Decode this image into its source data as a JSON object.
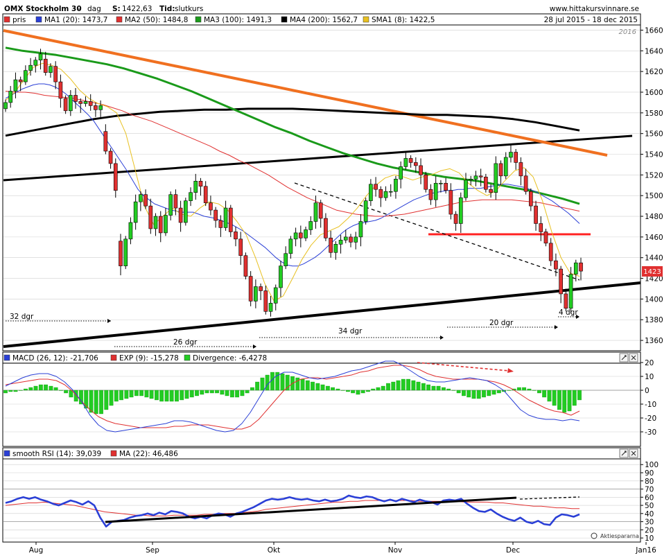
{
  "header": {
    "title": "OMX Stockholm 30",
    "sep": "-",
    "period": "dag",
    "last_label": "S:",
    "last_value": "1422,63",
    "type_label": "Tid:",
    "type_value": "slutkurs",
    "site": "www.hittakursvinnare.se",
    "date_range": "28 jul 2015 - 18 dec 2015",
    "year_mark": "2016"
  },
  "legend_price": [
    {
      "label": "pris",
      "color": "#e03030"
    },
    {
      "label": "MA1 (20): 1473,7",
      "color": "#2a3fd6"
    },
    {
      "label": "MA2 (50): 1484,8",
      "color": "#e03030"
    },
    {
      "label": "MA3 (100): 1491,3",
      "color": "#1a9a1a"
    },
    {
      "label": "MA4 (200): 1562,7",
      "color": "#000000"
    },
    {
      "label": "SMA1 (8): 1422,5",
      "color": "#e8c020"
    }
  ],
  "legend_macd": [
    {
      "label": "MACD (26, 12): -21,706",
      "color": "#2a3fd6"
    },
    {
      "label": "EXP (9): -15,278",
      "color": "#e03030"
    },
    {
      "label": "Divergence: -6,4278",
      "color": "#22cc22"
    }
  ],
  "legend_rsi": [
    {
      "label": "smooth RSI (14): 39,039",
      "color": "#2a3fd6"
    },
    {
      "label": "MA (22): 46,486",
      "color": "#e03030"
    }
  ],
  "annotations": {
    "d32": "32 dgr",
    "d26": "26 dgr",
    "d34": "34 dgr",
    "d20": "20 dgr",
    "d4": "4 dgr"
  },
  "price_badge": "1423",
  "source": "Aktiespararna",
  "colors": {
    "up": "#22cc22",
    "down": "#e03030",
    "trend": "#000000",
    "resistance": "#f07020",
    "support_line": "#ff2020"
  },
  "chart_data": {
    "type": "candlestick",
    "x_labels": [
      "Aug",
      "Sep",
      "Okt",
      "Nov",
      "Dec",
      "Jan16"
    ],
    "price_axis": {
      "ylim": [
        1350,
        1665
      ],
      "ticks": [
        1360,
        1380,
        1400,
        1420,
        1440,
        1460,
        1480,
        1500,
        1520,
        1540,
        1560,
        1580,
        1600,
        1620,
        1640,
        1660
      ]
    },
    "macd_axis": {
      "ylim": [
        -38,
        25
      ],
      "ticks": [
        -30,
        -20,
        -10,
        0,
        10,
        20
      ]
    },
    "rsi_axis": {
      "ylim": [
        5,
        107
      ],
      "ticks": [
        10,
        20,
        30,
        40,
        50,
        60,
        70,
        80,
        90,
        100
      ]
    },
    "close": [
      1590,
      1601,
      1612,
      1610,
      1621,
      1626,
      1631,
      1637,
      1619,
      1625,
      1610,
      1594,
      1582,
      1597,
      1591,
      1589,
      1591,
      1587,
      1583,
      1587,
      1543,
      1531,
      1505,
      1432,
      1458,
      1474,
      1494,
      1501,
      1490,
      1468,
      1480,
      1464,
      1481,
      1501,
      1488,
      1474,
      1495,
      1503,
      1514,
      1509,
      1493,
      1486,
      1476,
      1469,
      1488,
      1465,
      1458,
      1442,
      1422,
      1398,
      1412,
      1408,
      1388,
      1396,
      1411,
      1432,
      1444,
      1458,
      1464,
      1459,
      1467,
      1475,
      1493,
      1478,
      1459,
      1445,
      1453,
      1457,
      1460,
      1455,
      1460,
      1475,
      1495,
      1511,
      1506,
      1498,
      1504,
      1504,
      1516,
      1528,
      1536,
      1532,
      1529,
      1520,
      1506,
      1496,
      1512,
      1512,
      1505,
      1482,
      1473,
      1498,
      1515,
      1516,
      1519,
      1518,
      1506,
      1503,
      1531,
      1519,
      1537,
      1542,
      1532,
      1519,
      1504,
      1490,
      1473,
      1465,
      1454,
      1437,
      1429,
      1405,
      1391,
      1424,
      1435,
      1427
    ],
    "open": [
      1584,
      1590,
      1601,
      1612,
      1610,
      1621,
      1626,
      1631,
      1632,
      1619,
      1625,
      1610,
      1594,
      1582,
      1597,
      1591,
      1589,
      1591,
      1587,
      1583,
      1562,
      1543,
      1531,
      1456,
      1432,
      1458,
      1474,
      1494,
      1501,
      1490,
      1468,
      1480,
      1464,
      1481,
      1501,
      1488,
      1474,
      1495,
      1503,
      1514,
      1509,
      1493,
      1486,
      1476,
      1469,
      1488,
      1465,
      1458,
      1442,
      1422,
      1398,
      1412,
      1408,
      1388,
      1396,
      1411,
      1432,
      1444,
      1458,
      1464,
      1459,
      1467,
      1475,
      1493,
      1478,
      1459,
      1445,
      1453,
      1457,
      1460,
      1455,
      1460,
      1475,
      1495,
      1511,
      1506,
      1498,
      1504,
      1504,
      1516,
      1528,
      1536,
      1532,
      1529,
      1520,
      1506,
      1496,
      1512,
      1512,
      1505,
      1482,
      1473,
      1498,
      1515,
      1516,
      1519,
      1518,
      1506,
      1503,
      1531,
      1519,
      1537,
      1542,
      1532,
      1519,
      1504,
      1490,
      1473,
      1465,
      1454,
      1437,
      1429,
      1405,
      1391,
      1424,
      1435
    ],
    "ma20": [
      1594,
      1597,
      1600,
      1603,
      1605,
      1607,
      1608,
      1608,
      1607,
      1605,
      1602,
      1598,
      1593,
      1588,
      1583,
      1578,
      1572,
      1564,
      1556,
      1548,
      1540,
      1532,
      1524,
      1515,
      1506,
      1500,
      1496,
      1492,
      1490,
      1488,
      1486,
      1485,
      1484,
      1484,
      1484,
      1482,
      1480,
      1479,
      1478,
      1476,
      1474,
      1472,
      1469,
      1466,
      1462,
      1458,
      1454,
      1450,
      1445,
      1440,
      1436,
      1433,
      1432,
      1432,
      1434,
      1437,
      1440,
      1444,
      1449,
      1454,
      1459,
      1464,
      1468,
      1471,
      1473,
      1474,
      1475,
      1476,
      1478,
      1481,
      1484,
      1487,
      1490,
      1493,
      1496,
      1498,
      1500,
      1502,
      1503,
      1504,
      1505,
      1505,
      1506,
      1506,
      1507,
      1507,
      1507,
      1508,
      1509,
      1510,
      1511,
      1511,
      1510,
      1509,
      1508,
      1506,
      1504,
      1501,
      1498,
      1495,
      1491,
      1487,
      1483,
      1478,
      1473
    ],
    "ma50": [
      1601,
      1600,
      1600,
      1599,
      1597,
      1596,
      1595,
      1594,
      1592,
      1590,
      1588,
      1585,
      1582,
      1578,
      1575,
      1572,
      1568,
      1564,
      1560,
      1556,
      1552,
      1548,
      1543,
      1539,
      1534,
      1530,
      1525,
      1520,
      1514,
      1508,
      1503,
      1498,
      1494,
      1490,
      1486,
      1484,
      1482,
      1481,
      1480,
      1480,
      1481,
      1482,
      1484,
      1486,
      1488,
      1490,
      1492,
      1494,
      1495,
      1496,
      1496,
      1496,
      1496,
      1495,
      1494,
      1493,
      1491,
      1489,
      1487,
      1485
    ],
    "ma100": [
      1643,
      1640,
      1638,
      1636,
      1633,
      1630,
      1627,
      1623,
      1618,
      1613,
      1607,
      1601,
      1594,
      1587,
      1580,
      1573,
      1566,
      1560,
      1553,
      1547,
      1541,
      1536,
      1531,
      1527,
      1524,
      1521,
      1518,
      1516,
      1514,
      1511,
      1508,
      1505,
      1501,
      1497,
      1492
    ],
    "ma200": [
      1558,
      1562,
      1566,
      1570,
      1574,
      1577,
      1579,
      1581,
      1582,
      1583,
      1583,
      1584,
      1584,
      1584,
      1583,
      1582,
      1581,
      1580,
      1579,
      1578,
      1578,
      1577,
      1576,
      1574,
      1571,
      1567,
      1563
    ],
    "sma8": [
      1592,
      1600,
      1612,
      1624,
      1628,
      1626,
      1622,
      1613,
      1602,
      1594,
      1589,
      1586,
      1580,
      1560,
      1525,
      1490,
      1472,
      1480,
      1488,
      1482,
      1480,
      1488,
      1494,
      1492,
      1486,
      1475,
      1462,
      1440,
      1415,
      1398,
      1403,
      1420,
      1438,
      1452,
      1462,
      1466,
      1470,
      1478,
      1488,
      1500,
      1510,
      1517,
      1520,
      1518,
      1515,
      1518,
      1520,
      1524,
      1526,
      1522,
      1512,
      1505,
      1500,
      1505,
      1515,
      1524,
      1527,
      1518,
      1495,
      1465,
      1440,
      1425,
      1422
    ],
    "macd": [
      3,
      6,
      9,
      11,
      12,
      12,
      10,
      6,
      0,
      -8,
      -18,
      -25,
      -29,
      -30,
      -29,
      -28,
      -27,
      -26,
      -25,
      -24,
      -22,
      -22,
      -23,
      -25,
      -27,
      -29,
      -30,
      -29,
      -24,
      -16,
      -6,
      4,
      10,
      13,
      13,
      11,
      9,
      8,
      9,
      10,
      12,
      14,
      15,
      17,
      19,
      21,
      21,
      18,
      14,
      10,
      7,
      6,
      6,
      7,
      8,
      9,
      8,
      7,
      4,
      0,
      -7,
      -14,
      -18,
      -20,
      -21,
      -21,
      -22,
      -21,
      -22
    ],
    "macd_signal": [
      4,
      5,
      6,
      7,
      8,
      8,
      7,
      4,
      -1,
      -8,
      -14,
      -19,
      -22,
      -24,
      -25,
      -26,
      -27,
      -27,
      -27,
      -27,
      -26,
      -26,
      -25,
      -25,
      -25,
      -26,
      -27,
      -28,
      -28,
      -26,
      -21,
      -14,
      -7,
      0,
      5,
      8,
      9,
      9,
      8,
      9,
      10,
      11,
      13,
      14,
      16,
      17,
      18,
      18,
      17,
      15,
      12,
      10,
      9,
      8,
      8,
      8,
      8,
      7,
      6,
      4,
      1,
      -3,
      -7,
      -10,
      -13,
      -15,
      -16,
      -18,
      -15
    ],
    "macd_divergence": [
      -2,
      -1,
      -1,
      0,
      1,
      2,
      3,
      4,
      4,
      3,
      2,
      0,
      -2,
      -5,
      -8,
      -10,
      -13,
      -16,
      -17,
      -17,
      -14,
      -11,
      -8,
      -7,
      -6,
      -5,
      -4,
      -4,
      -5,
      -6,
      -7,
      -8,
      -8,
      -8,
      -8,
      -7,
      -6,
      -5,
      -4,
      -3,
      -2,
      -2,
      -2,
      -3,
      -4,
      -5,
      -5,
      -4,
      -2,
      2,
      6,
      9,
      11,
      13,
      13,
      12,
      11,
      10,
      9,
      8,
      7,
      6,
      5,
      4,
      3,
      2,
      1,
      0,
      -1,
      -2,
      -3,
      -2,
      -1,
      1,
      2,
      3,
      5,
      6,
      7,
      8,
      8,
      7,
      6,
      5,
      4,
      3,
      3,
      2,
      1,
      0,
      -2,
      -4,
      -5,
      -6,
      -6,
      -5,
      -4,
      -3,
      -2,
      -1,
      0,
      1,
      2,
      2,
      1,
      0,
      -2,
      -5,
      -8,
      -11,
      -14,
      -16,
      -15,
      -11,
      -7
    ],
    "rsi": [
      53,
      55,
      58,
      60,
      58,
      60,
      57,
      55,
      52,
      50,
      53,
      56,
      54,
      51,
      55,
      50,
      35,
      24,
      30,
      31,
      32,
      35,
      37,
      38,
      40,
      38,
      41,
      39,
      43,
      42,
      40,
      36,
      34,
      36,
      34,
      38,
      40,
      39,
      36,
      40,
      42,
      45,
      48,
      52,
      56,
      58,
      57,
      58,
      60,
      58,
      57,
      58,
      56,
      55,
      57,
      55,
      56,
      58,
      62,
      60,
      59,
      61,
      60,
      57,
      55,
      57,
      55,
      58,
      56,
      54,
      57,
      55,
      54,
      51,
      56,
      57,
      56,
      58,
      52,
      47,
      43,
      42,
      45,
      40,
      36,
      33,
      31,
      35,
      30,
      28,
      31,
      27,
      26,
      35,
      39,
      38,
      36,
      39
    ],
    "rsi_ma": [
      50,
      51,
      52,
      53,
      53,
      54,
      53,
      52,
      51,
      50,
      48,
      46,
      44,
      42,
      41,
      40,
      39,
      38,
      38,
      37,
      37,
      37,
      38,
      38,
      38,
      38,
      39,
      39,
      40,
      40,
      40,
      41,
      42,
      43,
      45,
      46,
      47,
      48,
      49,
      50,
      51,
      52,
      53,
      54,
      54,
      55,
      55,
      56,
      56,
      56,
      56,
      56,
      56,
      56,
      55,
      55,
      55,
      55,
      55,
      55,
      54,
      54,
      54,
      54,
      53,
      53,
      52,
      51,
      50,
      49,
      49,
      48,
      47,
      47,
      46,
      46
    ]
  }
}
